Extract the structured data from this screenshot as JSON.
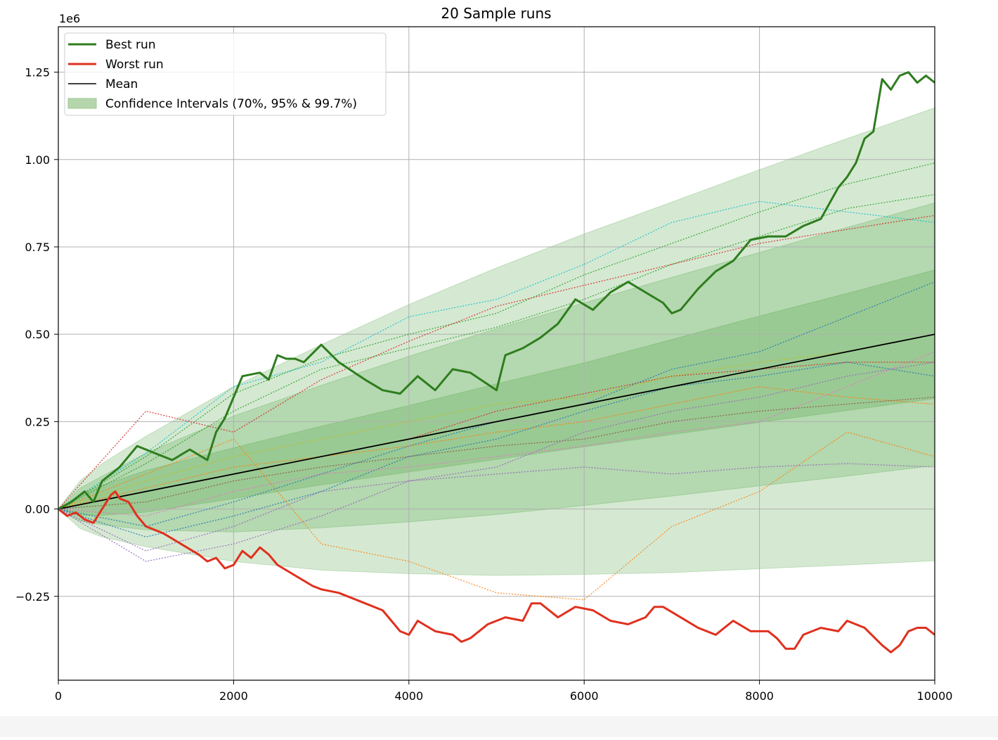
{
  "chart_data": {
    "type": "line",
    "title": "20 Sample runs",
    "xlabel": "",
    "ylabel": "",
    "y_offset_label": "1e6",
    "xlim": [
      0,
      10000
    ],
    "ylim": [
      -0.49,
      1.38
    ],
    "y_unit_multiplier": 1000000,
    "x_ticks": [
      0,
      2000,
      4000,
      6000,
      8000,
      10000
    ],
    "x_tick_labels": [
      "0",
      "2000",
      "4000",
      "6000",
      "8000",
      "10000"
    ],
    "y_ticks": [
      -0.25,
      0.0,
      0.25,
      0.5,
      0.75,
      1.0,
      1.25
    ],
    "y_tick_labels": [
      "−0.25",
      "0.00",
      "0.25",
      "0.50",
      "0.75",
      "1.00",
      "1.25"
    ],
    "grid": true,
    "legend_position": "top-left",
    "legend": [
      {
        "label": "Best run",
        "kind": "line",
        "color": "#2e7d1e"
      },
      {
        "label": "Worst run",
        "kind": "line",
        "color": "#e0301e"
      },
      {
        "label": "Mean",
        "kind": "line",
        "color": "#000000"
      },
      {
        "label": "Confidence Intervals (70%, 95% & 99.7%)",
        "kind": "patch",
        "color": "#b5d6ad"
      }
    ],
    "mean": {
      "x": [
        0,
        10000
      ],
      "y": [
        0.0,
        0.5
      ]
    },
    "confidence_bands": {
      "x": [
        0,
        250,
        500,
        1000,
        2000,
        3000,
        4000,
        5000,
        6000,
        7000,
        8000,
        9000,
        10000
      ],
      "level_70": {
        "lower": [
          0.0,
          -0.018,
          -0.018,
          -0.009,
          0.03,
          0.069,
          0.106,
          0.142,
          0.178,
          0.213,
          0.248,
          0.282,
          0.316
        ],
        "upper": [
          0.0,
          0.043,
          0.068,
          0.11,
          0.175,
          0.237,
          0.296,
          0.358,
          0.418,
          0.485,
          0.552,
          0.617,
          0.684
        ]
      },
      "level_95": {
        "lower": [
          0.0,
          -0.035,
          -0.045,
          -0.06,
          -0.066,
          -0.054,
          -0.037,
          -0.016,
          0.01,
          0.037,
          0.066,
          0.094,
          0.124
        ],
        "upper": [
          0.0,
          0.06,
          0.094,
          0.16,
          0.266,
          0.354,
          0.437,
          0.516,
          0.59,
          0.663,
          0.734,
          0.806,
          0.876
        ]
      },
      "level_997": {
        "lower": [
          0.0,
          -0.056,
          -0.08,
          -0.108,
          -0.15,
          -0.175,
          -0.185,
          -0.19,
          -0.187,
          -0.182,
          -0.171,
          -0.16,
          -0.148
        ],
        "upper": [
          0.0,
          0.081,
          0.13,
          0.208,
          0.35,
          0.47,
          0.585,
          0.69,
          0.787,
          0.878,
          0.971,
          1.06,
          1.148
        ]
      }
    },
    "best_run": {
      "name": "Best run",
      "x": [
        0,
        150,
        300,
        400,
        500,
        700,
        900,
        1100,
        1300,
        1500,
        1700,
        1800,
        1900,
        2100,
        2300,
        2400,
        2500,
        2600,
        2700,
        2800,
        3000,
        3200,
        3500,
        3700,
        3900,
        4100,
        4300,
        4500,
        4700,
        5000,
        5100,
        5300,
        5500,
        5700,
        5900,
        6100,
        6300,
        6500,
        6700,
        6900,
        7000,
        7100,
        7300,
        7500,
        7700,
        7900,
        8100,
        8300,
        8500,
        8700,
        8900,
        9000,
        9100,
        9200,
        9300,
        9400,
        9500,
        9600,
        9700,
        9800,
        9900,
        10000
      ],
      "y": [
        0.0,
        0.02,
        0.05,
        0.02,
        0.08,
        0.12,
        0.18,
        0.16,
        0.14,
        0.17,
        0.14,
        0.22,
        0.26,
        0.38,
        0.39,
        0.37,
        0.44,
        0.43,
        0.43,
        0.42,
        0.47,
        0.42,
        0.37,
        0.34,
        0.33,
        0.38,
        0.34,
        0.4,
        0.39,
        0.34,
        0.44,
        0.46,
        0.49,
        0.53,
        0.6,
        0.57,
        0.62,
        0.65,
        0.62,
        0.59,
        0.56,
        0.57,
        0.63,
        0.68,
        0.71,
        0.77,
        0.78,
        0.78,
        0.81,
        0.83,
        0.92,
        0.95,
        0.99,
        1.06,
        1.08,
        1.23,
        1.2,
        1.24,
        1.25,
        1.22,
        1.24,
        1.22
      ]
    },
    "worst_run": {
      "name": "Worst run",
      "x": [
        0,
        100,
        200,
        300,
        400,
        500,
        600,
        650,
        700,
        800,
        900,
        1000,
        1200,
        1400,
        1600,
        1700,
        1800,
        1900,
        2000,
        2100,
        2200,
        2300,
        2400,
        2500,
        2700,
        2900,
        3000,
        3200,
        3500,
        3700,
        3800,
        3900,
        4000,
        4100,
        4300,
        4500,
        4600,
        4700,
        4900,
        5100,
        5300,
        5400,
        5500,
        5700,
        5900,
        6100,
        6300,
        6500,
        6700,
        6800,
        6900,
        7100,
        7300,
        7500,
        7700,
        7900,
        8100,
        8200,
        8300,
        8400,
        8500,
        8700,
        8900,
        9000,
        9200,
        9400,
        9500,
        9600,
        9700,
        9800,
        9900,
        10000
      ],
      "y": [
        0.0,
        -0.02,
        -0.01,
        -0.03,
        -0.04,
        0.0,
        0.04,
        0.05,
        0.03,
        0.02,
        -0.02,
        -0.05,
        -0.07,
        -0.1,
        -0.13,
        -0.15,
        -0.14,
        -0.17,
        -0.16,
        -0.12,
        -0.14,
        -0.11,
        -0.13,
        -0.16,
        -0.19,
        -0.22,
        -0.23,
        -0.24,
        -0.27,
        -0.29,
        -0.32,
        -0.35,
        -0.36,
        -0.32,
        -0.35,
        -0.36,
        -0.38,
        -0.37,
        -0.33,
        -0.31,
        -0.32,
        -0.27,
        -0.27,
        -0.31,
        -0.28,
        -0.29,
        -0.32,
        -0.33,
        -0.31,
        -0.28,
        -0.28,
        -0.31,
        -0.34,
        -0.36,
        -0.32,
        -0.35,
        -0.35,
        -0.37,
        -0.4,
        -0.4,
        -0.36,
        -0.34,
        -0.35,
        -0.32,
        -0.34,
        -0.39,
        -0.41,
        -0.39,
        -0.35,
        -0.34,
        -0.34,
        -0.36
      ]
    },
    "sample_runs": [
      {
        "color": "#17becf",
        "x": [
          0,
          1000,
          2000,
          3000,
          4000,
          5000,
          6000,
          7000,
          8000,
          9000,
          10000
        ],
        "y": [
          0.0,
          0.16,
          0.35,
          0.42,
          0.55,
          0.6,
          0.7,
          0.82,
          0.88,
          0.85,
          0.82
        ]
      },
      {
        "color": "#2ca02c",
        "x": [
          0,
          1000,
          2000,
          3000,
          4000,
          5000,
          6000,
          7000,
          8000,
          9000,
          10000
        ],
        "y": [
          0.0,
          0.15,
          0.33,
          0.43,
          0.5,
          0.56,
          0.67,
          0.76,
          0.85,
          0.93,
          0.99
        ]
      },
      {
        "color": "#2ca02c",
        "x": [
          0,
          1000,
          2000,
          3000,
          4000,
          5000,
          6000,
          7000,
          8000,
          9000,
          10000
        ],
        "y": [
          0.0,
          0.13,
          0.28,
          0.4,
          0.46,
          0.52,
          0.6,
          0.7,
          0.78,
          0.86,
          0.9
        ]
      },
      {
        "color": "#d62728",
        "x": [
          0,
          1000,
          2000,
          3000,
          4000,
          5000,
          6000,
          7000,
          8000,
          9000,
          10000
        ],
        "y": [
          0.0,
          0.28,
          0.22,
          0.37,
          0.48,
          0.58,
          0.64,
          0.7,
          0.76,
          0.8,
          0.84
        ]
      },
      {
        "color": "#d62728",
        "x": [
          0,
          1000,
          2000,
          3000,
          4000,
          5000,
          6000,
          7000,
          8000,
          9000,
          10000
        ],
        "y": [
          0.0,
          0.05,
          0.1,
          0.15,
          0.2,
          0.28,
          0.33,
          0.38,
          0.4,
          0.42,
          0.42
        ]
      },
      {
        "color": "#1f77b4",
        "x": [
          0,
          1000,
          2000,
          3000,
          4000,
          5000,
          6000,
          7000,
          8000,
          9000,
          10000
        ],
        "y": [
          0.0,
          -0.05,
          0.02,
          0.1,
          0.18,
          0.25,
          0.3,
          0.4,
          0.45,
          0.55,
          0.65
        ]
      },
      {
        "color": "#1f77b4",
        "x": [
          0,
          1000,
          2000,
          3000,
          4000,
          5000,
          6000,
          7000,
          8000,
          9000,
          10000
        ],
        "y": [
          0.0,
          -0.08,
          -0.02,
          0.05,
          0.15,
          0.2,
          0.28,
          0.35,
          0.38,
          0.42,
          0.38
        ]
      },
      {
        "color": "#9467bd",
        "x": [
          0,
          1000,
          2000,
          3000,
          4000,
          5000,
          6000,
          7000,
          8000,
          9000,
          10000
        ],
        "y": [
          0.0,
          -0.15,
          -0.1,
          -0.02,
          0.08,
          0.12,
          0.22,
          0.28,
          0.32,
          0.38,
          0.42
        ]
      },
      {
        "color": "#9467bd",
        "x": [
          0,
          1000,
          2000,
          3000,
          4000,
          5000,
          6000,
          7000,
          8000,
          9000,
          10000
        ],
        "y": [
          0.0,
          -0.12,
          -0.05,
          0.05,
          0.08,
          0.1,
          0.12,
          0.1,
          0.12,
          0.13,
          0.12
        ]
      },
      {
        "color": "#e377c2",
        "x": [
          0,
          1000,
          2000,
          3000,
          4000,
          5000,
          6000,
          7000,
          8000,
          9000,
          10000
        ],
        "y": [
          0.0,
          -0.02,
          0.05,
          0.1,
          0.12,
          0.15,
          0.18,
          0.22,
          0.25,
          0.35,
          0.45
        ]
      },
      {
        "color": "#ff7f0e",
        "x": [
          0,
          1000,
          2000,
          3000,
          4000,
          5000,
          6000,
          7000,
          8000,
          9000,
          10000
        ],
        "y": [
          0.0,
          0.1,
          0.2,
          -0.1,
          -0.15,
          -0.24,
          -0.26,
          -0.05,
          0.05,
          0.22,
          0.15
        ]
      },
      {
        "color": "#ff7f0e",
        "x": [
          0,
          1000,
          2000,
          3000,
          4000,
          5000,
          6000,
          7000,
          8000,
          9000,
          10000
        ],
        "y": [
          0.0,
          0.06,
          0.12,
          0.15,
          0.18,
          0.22,
          0.25,
          0.3,
          0.35,
          0.32,
          0.3
        ]
      },
      {
        "color": "#bcbd22",
        "x": [
          0,
          1000,
          2000,
          3000,
          4000,
          5000,
          6000,
          7000,
          8000,
          9000,
          10000
        ],
        "y": [
          0.0,
          0.08,
          0.15,
          0.2,
          0.25,
          0.3,
          0.32,
          0.38,
          0.42,
          0.45,
          0.5
        ]
      },
      {
        "color": "#8c564b",
        "x": [
          0,
          1000,
          2000,
          3000,
          4000,
          5000,
          6000,
          7000,
          8000,
          9000,
          10000
        ],
        "y": [
          0.0,
          0.02,
          0.08,
          0.12,
          0.15,
          0.18,
          0.2,
          0.25,
          0.28,
          0.3,
          0.32
        ]
      }
    ]
  }
}
